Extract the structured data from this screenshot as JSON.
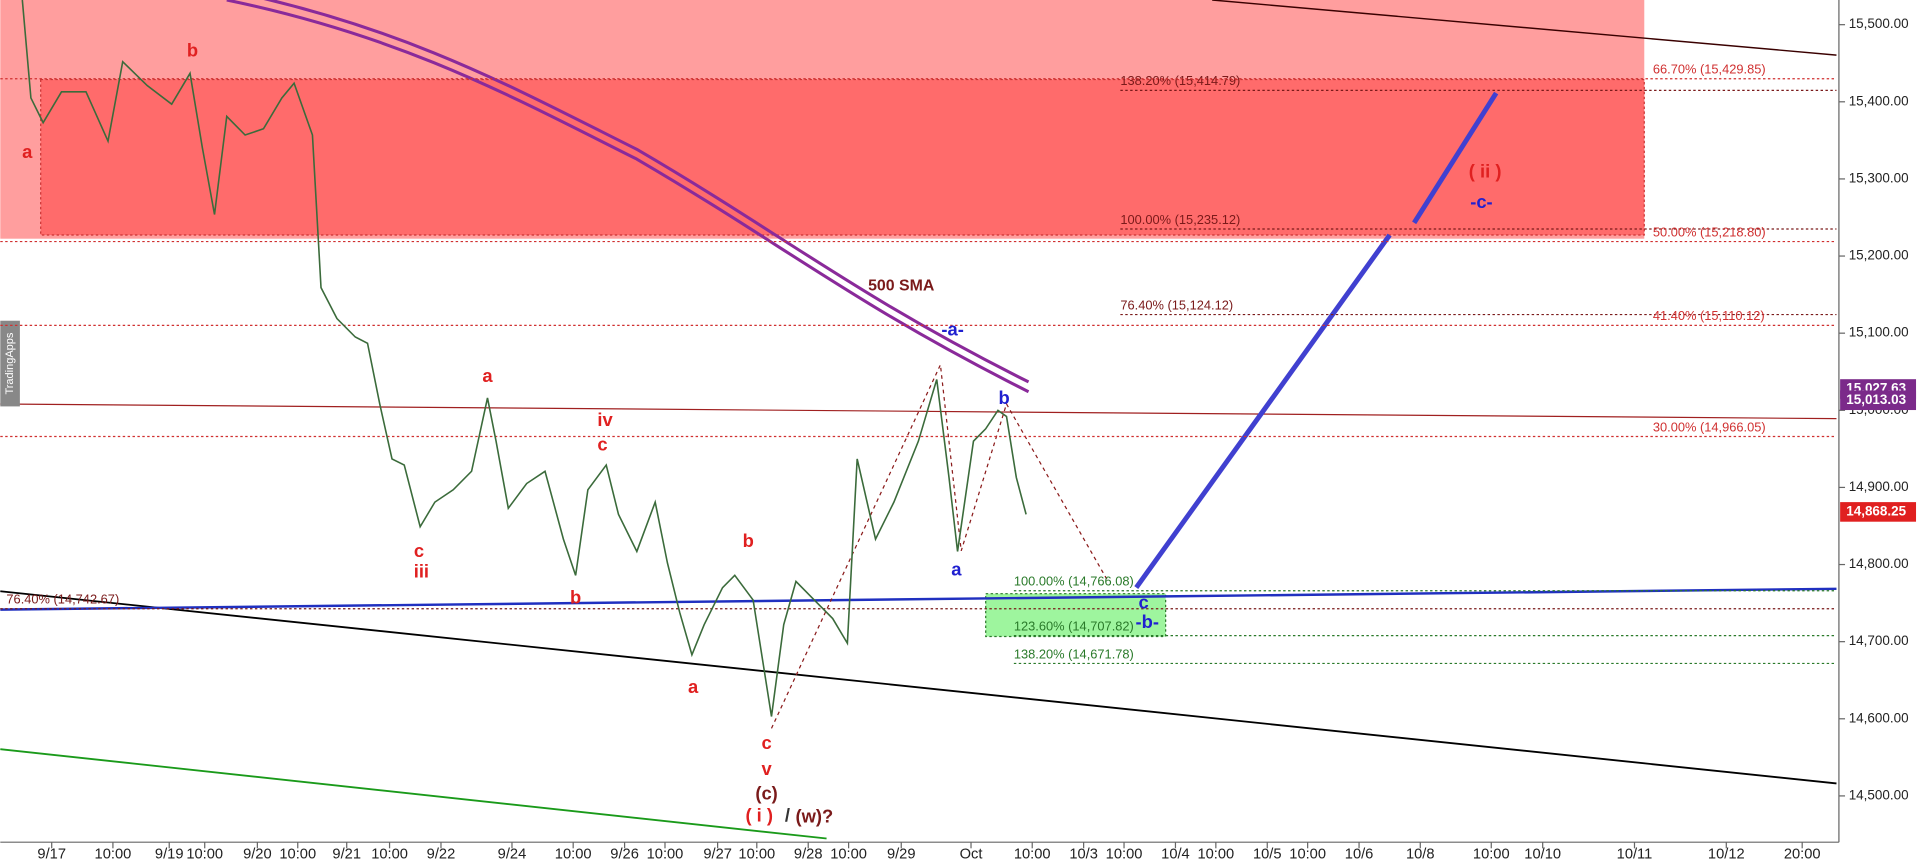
{
  "chart_data": {
    "type": "line",
    "watermark": "TradingApps",
    "ylim": [
      14440,
      15532
    ],
    "yticks": [
      {
        "value": 14500,
        "label": "14,500.00"
      },
      {
        "value": 14600,
        "label": "14,600.00"
      },
      {
        "value": 14700,
        "label": "14,700.00"
      },
      {
        "value": 14800,
        "label": "14,800.00"
      },
      {
        "value": 14900,
        "label": "14,900.00"
      },
      {
        "value": 15000,
        "label": "15,000.00"
      },
      {
        "value": 15100,
        "label": "15,100.00"
      },
      {
        "value": 15200,
        "label": "15,200.00"
      },
      {
        "value": 15300,
        "label": "15,300.00"
      },
      {
        "value": 15400,
        "label": "15,400.00"
      },
      {
        "value": 15500,
        "label": "15,500.00"
      }
    ],
    "xlim": [
      0,
      1500
    ],
    "xticks": [
      {
        "value": 42,
        "label": "9/17"
      },
      {
        "value": 92,
        "label": "10:00"
      },
      {
        "value": 138,
        "label": "9/19"
      },
      {
        "value": 167,
        "label": "10:00"
      },
      {
        "value": 210,
        "label": "9/20"
      },
      {
        "value": 243,
        "label": "10:00"
      },
      {
        "value": 283,
        "label": "9/21"
      },
      {
        "value": 318,
        "label": "10:00"
      },
      {
        "value": 360,
        "label": "9/22"
      },
      {
        "value": 418,
        "label": "9/24"
      },
      {
        "value": 468,
        "label": "10:00"
      },
      {
        "value": 510,
        "label": "9/26"
      },
      {
        "value": 543,
        "label": "10:00"
      },
      {
        "value": 586,
        "label": "9/27"
      },
      {
        "value": 618,
        "label": "10:00"
      },
      {
        "value": 660,
        "label": "9/28"
      },
      {
        "value": 693,
        "label": "10:00"
      },
      {
        "value": 736,
        "label": "9/29"
      },
      {
        "value": 793,
        "label": "Oct"
      },
      {
        "value": 843,
        "label": "10:00"
      },
      {
        "value": 885,
        "label": "10/3"
      },
      {
        "value": 918,
        "label": "10:00"
      },
      {
        "value": 960,
        "label": "10/4"
      },
      {
        "value": 993,
        "label": "10:00"
      },
      {
        "value": 1035,
        "label": "10/5"
      },
      {
        "value": 1068,
        "label": "10:00"
      },
      {
        "value": 1110,
        "label": "10/6"
      },
      {
        "value": 1160,
        "label": "10/8"
      },
      {
        "value": 1218,
        "label": "10:00"
      },
      {
        "value": 1260,
        "label": "10/10"
      },
      {
        "value": 1335,
        "label": "10/11"
      },
      {
        "value": 1410,
        "label": "10/12"
      },
      {
        "value": 1472,
        "label": "20:00"
      }
    ],
    "series": [
      {
        "color": "#3b6b3b",
        "x": [
          18,
          25,
          35,
          50,
          70,
          88,
          100,
          120,
          140,
          155,
          165,
          175,
          185,
          200,
          215,
          230,
          240,
          255,
          262,
          275,
          290,
          300,
          310,
          320,
          330,
          343,
          355,
          370,
          385,
          398,
          405,
          415,
          430,
          445,
          460,
          470,
          480,
          495,
          505,
          520,
          535,
          545,
          555,
          565,
          575,
          590,
          600,
          615,
          630,
          640,
          650,
          665,
          680,
          692,
          700,
          715,
          730,
          750,
          765,
          775,
          782,
          795,
          805,
          815,
          822,
          830,
          838
        ],
        "values": [
          15532,
          15405,
          15373,
          15413,
          15413,
          15349,
          15452,
          15421,
          15397,
          15437,
          15341,
          15254,
          15381,
          15357,
          15365,
          15405,
          15424,
          15357,
          15159,
          15119,
          15095,
          15087,
          15008,
          14937,
          14929,
          14849,
          14881,
          14897,
          14921,
          15016,
          14960,
          14873,
          14905,
          14921,
          14833,
          14786,
          14897,
          14929,
          14865,
          14817,
          14881,
          14802,
          14738,
          14683,
          14722,
          14770,
          14786,
          14754,
          14603,
          14722,
          14778,
          14754,
          14730,
          14698,
          14937,
          14833,
          14881,
          14960,
          15040,
          14913,
          14817,
          14960,
          14976,
          15000,
          14992,
          14913,
          14865
        ]
      }
    ],
    "price_tags": [
      {
        "value": 15027.63,
        "label": "15,027.63",
        "color": "#7b2a8a"
      },
      {
        "value": 15013.03,
        "label": "15,013.03",
        "color": "#7b2a8a"
      },
      {
        "value": 14868.25,
        "label": "14,868.25",
        "color": "#e02020"
      }
    ],
    "levels": [
      {
        "label": "138.20% (15,414.79)",
        "value": 15414.79,
        "color": "#7a1a1a"
      },
      {
        "label": "100.00% (15,235.12)",
        "value": 15235.12,
        "color": "#7a1a1a"
      },
      {
        "label": "76.40% (15,124.12)",
        "value": 15124.12,
        "color": "#7a1a1a"
      },
      {
        "label": "66.70% (15,429.85)",
        "value": 15429.85,
        "color": "#d03030"
      },
      {
        "label": "50.00% (15,218.80)",
        "value": 15218.8,
        "color": "#d03030"
      },
      {
        "label": "41.40% (15,110.12)",
        "value": 15110.12,
        "color": "#d03030"
      },
      {
        "label": "30.00% (14,966.05)",
        "value": 14966.05,
        "color": "#d03030"
      },
      {
        "label": "76.40% (14,742.67)",
        "value": 14742.67,
        "color": "#7a1a1a"
      },
      {
        "label": "100.00% (14,766.08)",
        "value": 14766.08,
        "color": "#2a7a2a"
      },
      {
        "label": "123.60% (14,707.82)",
        "value": 14707.82,
        "color": "#2a7a2a"
      },
      {
        "label": "138.20% (14,671.78)",
        "value": 14671.78,
        "color": "#2a7a2a"
      }
    ],
    "annotations": [
      {
        "text": "a",
        "color": "#e02020"
      },
      {
        "text": "b",
        "color": "#e02020"
      },
      {
        "text": "a",
        "color": "#e02020"
      },
      {
        "text": "c",
        "color": "#e02020"
      },
      {
        "text": "iii",
        "color": "#e02020"
      },
      {
        "text": "iv",
        "color": "#e02020"
      },
      {
        "text": "c",
        "color": "#e02020"
      },
      {
        "text": "b",
        "color": "#e02020"
      },
      {
        "text": "b",
        "color": "#e02020"
      },
      {
        "text": "a",
        "color": "#e02020"
      },
      {
        "text": "c",
        "color": "#e02020"
      },
      {
        "text": "v",
        "color": "#e02020"
      },
      {
        "text": "(c)",
        "color": "#7a1a1a"
      },
      {
        "text": "( i )",
        "color": "#e02020"
      },
      {
        "text": "/",
        "color": "#333333"
      },
      {
        "text": "(w)?",
        "color": "#7a1a1a"
      },
      {
        "text": "-a-",
        "color": "#2020d0"
      },
      {
        "text": "b",
        "color": "#2020d0"
      },
      {
        "text": "a",
        "color": "#2020d0"
      },
      {
        "text": "c",
        "color": "#2020d0"
      },
      {
        "text": "-b-",
        "color": "#2020d0"
      },
      {
        "text": "( ii )",
        "color": "#e02020"
      },
      {
        "text": "-c-",
        "color": "#2020d0"
      },
      {
        "text": "500 SMA",
        "color": "#7a1a1a"
      }
    ]
  }
}
